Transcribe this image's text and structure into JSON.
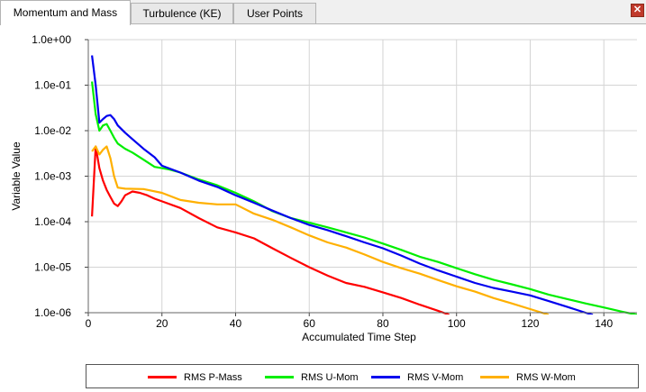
{
  "tabs": [
    {
      "label": "Momentum and Mass",
      "active": true
    },
    {
      "label": "Turbulence (KE)",
      "active": false
    },
    {
      "label": "User Points",
      "active": false
    }
  ],
  "close_icon": "close-x-icon",
  "chart_data": {
    "type": "line",
    "xlabel": "Accumulated Time Step",
    "ylabel": "Variable Value",
    "x_ticks": [
      "0",
      "20",
      "40",
      "60",
      "80",
      "100",
      "120",
      "140"
    ],
    "y_ticks": [
      "1.0e+00",
      "1.0e-01",
      "1.0e-02",
      "1.0e-03",
      "1.0e-04",
      "1.0e-05",
      "1.0e-06"
    ],
    "xlim": [
      0,
      149
    ],
    "ylim": [
      1e-06,
      1
    ],
    "yscale": "log",
    "grid": true,
    "legend_position": "bottom",
    "series": [
      {
        "name": "RMS P-Mass",
        "color": "#ff0000",
        "points": [
          [
            1,
            0.00013
          ],
          [
            2,
            0.0045
          ],
          [
            3,
            0.0015
          ],
          [
            4,
            0.0008
          ],
          [
            5,
            0.0005
          ],
          [
            6,
            0.00035
          ],
          [
            7,
            0.00025
          ],
          [
            8,
            0.00022
          ],
          [
            9,
            0.00028
          ],
          [
            10,
            0.00038
          ],
          [
            12,
            0.00046
          ],
          [
            14,
            0.00043
          ],
          [
            16,
            0.00038
          ],
          [
            18,
            0.00032
          ],
          [
            20,
            0.00028
          ],
          [
            25,
            0.0002
          ],
          [
            30,
            0.00012
          ],
          [
            35,
            7.5e-05
          ],
          [
            40,
            5.8e-05
          ],
          [
            45,
            4.3e-05
          ],
          [
            50,
            2.6e-05
          ],
          [
            55,
            1.6e-05
          ],
          [
            60,
            1e-05
          ],
          [
            65,
            6.5e-06
          ],
          [
            70,
            4.5e-06
          ],
          [
            75,
            3.7e-06
          ],
          [
            80,
            2.8e-06
          ],
          [
            85,
            2.1e-06
          ],
          [
            90,
            1.5e-06
          ],
          [
            95,
            1.1e-06
          ],
          [
            98,
            9e-07
          ]
        ]
      },
      {
        "name": "RMS U-Mom",
        "color": "#00ee00",
        "points": [
          [
            1,
            0.12
          ],
          [
            2,
            0.023
          ],
          [
            3,
            0.01
          ],
          [
            4,
            0.013
          ],
          [
            5,
            0.014
          ],
          [
            6,
            0.01
          ],
          [
            7,
            0.007
          ],
          [
            8,
            0.0052
          ],
          [
            10,
            0.004
          ],
          [
            12,
            0.0033
          ],
          [
            15,
            0.0023
          ],
          [
            18,
            0.0016
          ],
          [
            20,
            0.0015
          ],
          [
            22,
            0.0014
          ],
          [
            25,
            0.0012
          ],
          [
            30,
            0.00085
          ],
          [
            35,
            0.00063
          ],
          [
            40,
            0.00043
          ],
          [
            45,
            0.00028
          ],
          [
            50,
            0.00017
          ],
          [
            55,
            0.00012
          ],
          [
            60,
            9.5e-05
          ],
          [
            65,
            7.5e-05
          ],
          [
            70,
            5.8e-05
          ],
          [
            75,
            4.5e-05
          ],
          [
            80,
            3.3e-05
          ],
          [
            85,
            2.4e-05
          ],
          [
            90,
            1.7e-05
          ],
          [
            95,
            1.3e-05
          ],
          [
            100,
            9.5e-06
          ],
          [
            105,
            7e-06
          ],
          [
            110,
            5.3e-06
          ],
          [
            115,
            4.2e-06
          ],
          [
            120,
            3.3e-06
          ],
          [
            125,
            2.5e-06
          ],
          [
            130,
            2e-06
          ],
          [
            135,
            1.6e-06
          ],
          [
            140,
            1.3e-06
          ],
          [
            145,
            1.05e-06
          ],
          [
            149,
            9e-07
          ]
        ]
      },
      {
        "name": "RMS V-Mom",
        "color": "#0000ee",
        "points": [
          [
            1,
            0.45
          ],
          [
            2,
            0.1
          ],
          [
            3,
            0.015
          ],
          [
            4,
            0.018
          ],
          [
            5,
            0.021
          ],
          [
            6,
            0.022
          ],
          [
            7,
            0.018
          ],
          [
            8,
            0.013
          ],
          [
            10,
            0.009
          ],
          [
            12,
            0.0065
          ],
          [
            15,
            0.004
          ],
          [
            18,
            0.0026
          ],
          [
            20,
            0.0017
          ],
          [
            25,
            0.0012
          ],
          [
            30,
            0.0008
          ],
          [
            35,
            0.00058
          ],
          [
            40,
            0.00038
          ],
          [
            45,
            0.00026
          ],
          [
            50,
            0.000175
          ],
          [
            55,
            0.00012
          ],
          [
            60,
            8.5e-05
          ],
          [
            65,
            6.5e-05
          ],
          [
            70,
            4.8e-05
          ],
          [
            75,
            3.5e-05
          ],
          [
            80,
            2.6e-05
          ],
          [
            85,
            1.8e-05
          ],
          [
            90,
            1.2e-05
          ],
          [
            95,
            8.5e-06
          ],
          [
            100,
            6.2e-06
          ],
          [
            105,
            4.5e-06
          ],
          [
            110,
            3.5e-06
          ],
          [
            115,
            2.9e-06
          ],
          [
            120,
            2.4e-06
          ],
          [
            125,
            1.8e-06
          ],
          [
            130,
            1.35e-06
          ],
          [
            135,
            1e-06
          ],
          [
            137,
            9e-07
          ]
        ]
      },
      {
        "name": "RMS W-Mom",
        "color": "#ffb000",
        "points": [
          [
            1,
            0.0035
          ],
          [
            2,
            0.0045
          ],
          [
            3,
            0.003
          ],
          [
            4,
            0.0038
          ],
          [
            5,
            0.0045
          ],
          [
            6,
            0.0025
          ],
          [
            7,
            0.001
          ],
          [
            8,
            0.00056
          ],
          [
            10,
            0.00053
          ],
          [
            15,
            0.00052
          ],
          [
            20,
            0.00043
          ],
          [
            25,
            0.0003
          ],
          [
            30,
            0.00026
          ],
          [
            35,
            0.00024
          ],
          [
            40,
            0.00024
          ],
          [
            45,
            0.00015
          ],
          [
            50,
            0.00011
          ],
          [
            55,
            7.5e-05
          ],
          [
            60,
            5e-05
          ],
          [
            65,
            3.5e-05
          ],
          [
            70,
            2.7e-05
          ],
          [
            75,
            1.9e-05
          ],
          [
            80,
            1.3e-05
          ],
          [
            85,
            9.5e-06
          ],
          [
            90,
            7.2e-06
          ],
          [
            95,
            5.2e-06
          ],
          [
            100,
            3.8e-06
          ],
          [
            105,
            2.9e-06
          ],
          [
            110,
            2.1e-06
          ],
          [
            115,
            1.6e-06
          ],
          [
            120,
            1.2e-06
          ],
          [
            125,
            9e-07
          ]
        ]
      }
    ]
  }
}
